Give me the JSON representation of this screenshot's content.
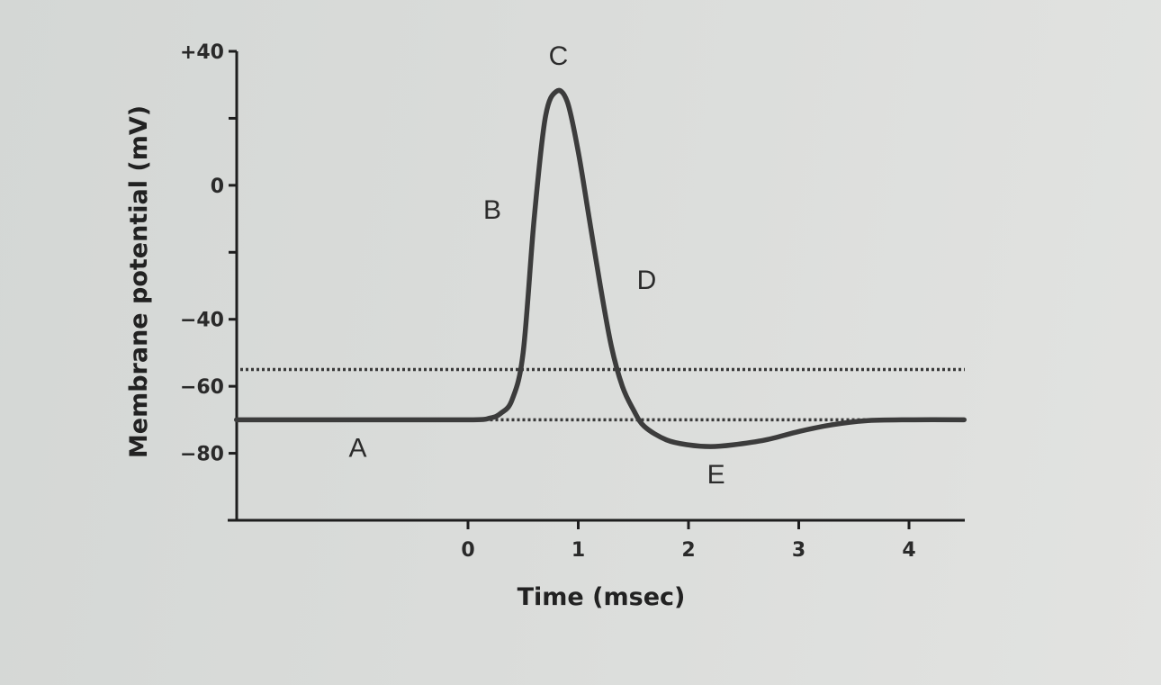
{
  "chart_data": {
    "type": "line",
    "title": "",
    "xlabel": "Time (msec)",
    "ylabel": "Membrane potential (mV)",
    "x_ticks": [
      0,
      1,
      2,
      3,
      4
    ],
    "x_tick_labels": [
      "0",
      "1",
      "2",
      "3",
      "4"
    ],
    "y_ticks": [
      40,
      0,
      -40,
      -60,
      -80
    ],
    "y_tick_labels": [
      "+40",
      "0",
      "−40",
      "−60",
      "−80"
    ],
    "y_minor_ticks": [
      20,
      -20,
      -100
    ],
    "xlim": [
      -2.1,
      4.5
    ],
    "ylim": [
      -100,
      40
    ],
    "grid": false,
    "reference_lines": [
      {
        "y": -55,
        "style": "dotted"
      },
      {
        "y": -70,
        "style": "dotted"
      }
    ],
    "series": [
      {
        "x": [
          -2.1,
          -1.0,
          0.0,
          0.2,
          0.3,
          0.4,
          0.5,
          0.6,
          0.7,
          0.8,
          0.9,
          1.0,
          1.1,
          1.2,
          1.3,
          1.4,
          1.5,
          1.6,
          1.8,
          2.0,
          2.2,
          2.4,
          2.7,
          3.0,
          3.3,
          3.6,
          4.0,
          4.5
        ],
        "values": [
          -70,
          -70,
          -70,
          -69.5,
          -68,
          -64,
          -50,
          -10,
          20,
          28,
          25,
          10,
          -10,
          -30,
          -48,
          -60,
          -67,
          -72,
          -76,
          -77.5,
          -78,
          -77.5,
          -76,
          -73.5,
          -71.5,
          -70.3,
          -70,
          -70
        ]
      }
    ],
    "annotations": [
      {
        "text": "A",
        "x": -1.0,
        "y": -81
      },
      {
        "text": "B",
        "x": 0.22,
        "y": -10
      },
      {
        "text": "C",
        "x": 0.82,
        "y": 36
      },
      {
        "text": "D",
        "x": 1.62,
        "y": -31
      },
      {
        "text": "E",
        "x": 2.25,
        "y": -89
      }
    ]
  }
}
